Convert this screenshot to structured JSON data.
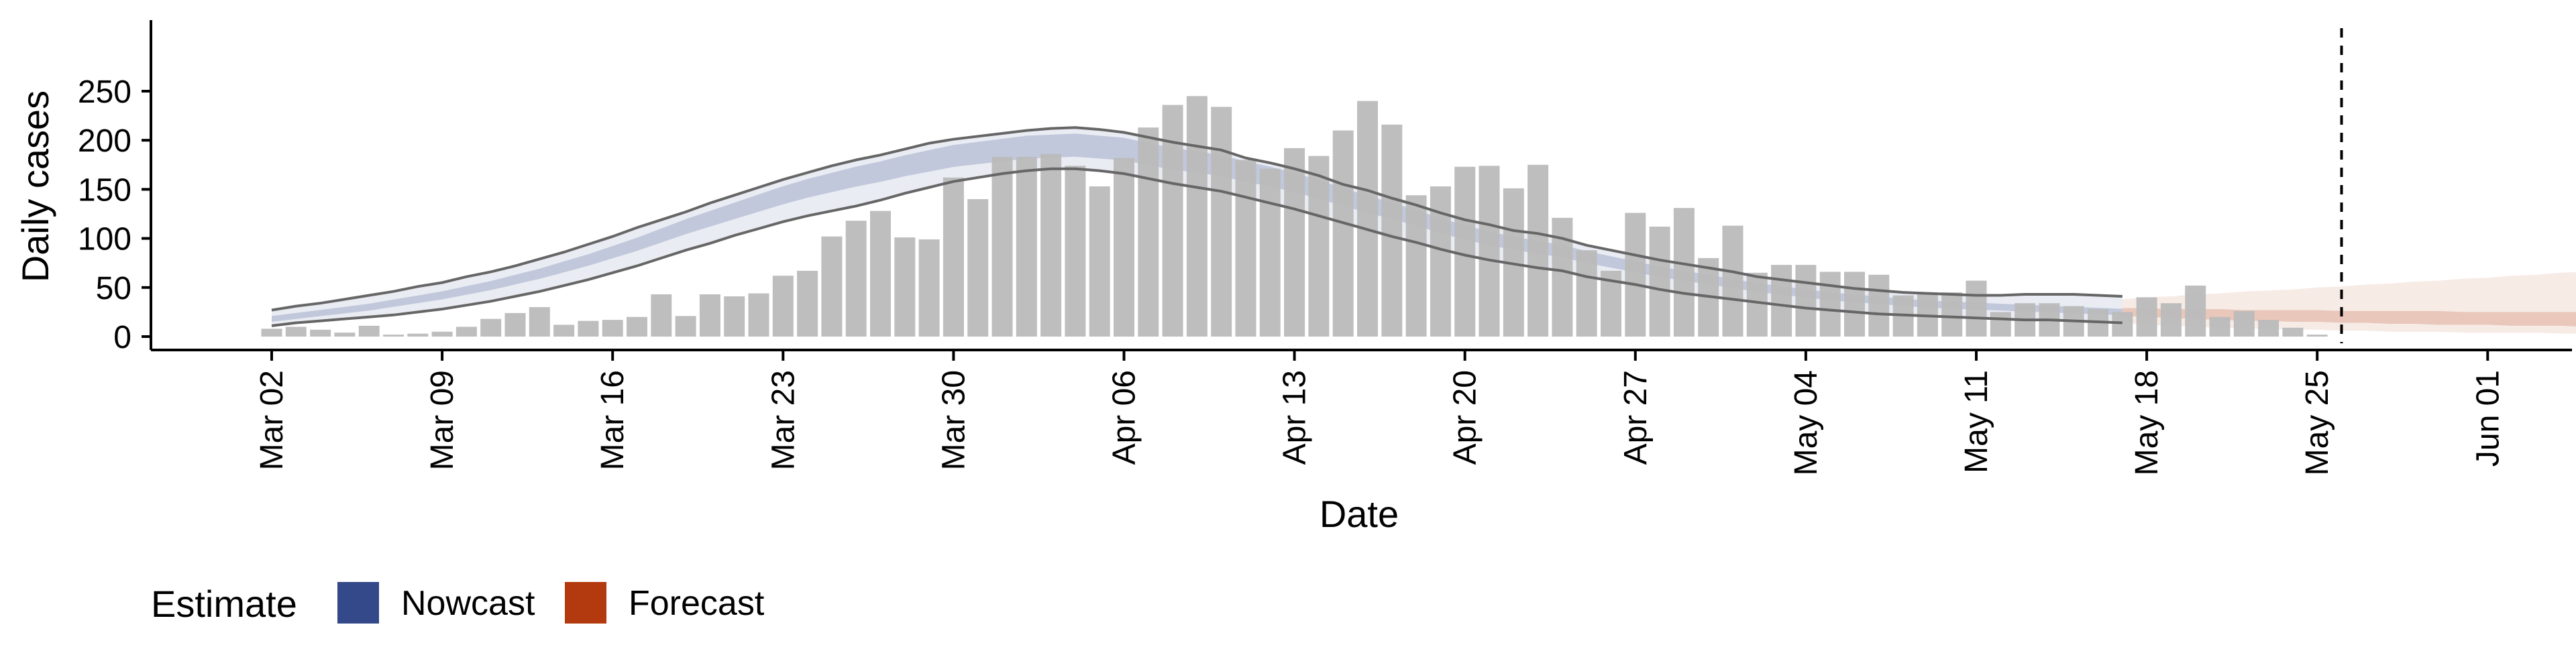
{
  "chart_data": {
    "type": "bar",
    "xlabel": "Date",
    "ylabel": "Daily cases",
    "ylim": [
      0,
      260
    ],
    "yticks": [
      0,
      50,
      100,
      150,
      200,
      250
    ],
    "x_start": "2020-03-02",
    "xticks": [
      "Mar 02",
      "Mar 09",
      "Mar 16",
      "Mar 23",
      "Mar 30",
      "Apr 06",
      "Apr 13",
      "Apr 20",
      "Apr 27",
      "May 04",
      "May 11",
      "May 18",
      "May 25",
      "Jun 01"
    ],
    "dashed_line_date": "2020-05-26",
    "legend": {
      "title": "Estimate",
      "placement": "bottom-left",
      "items": [
        {
          "label": "Nowcast",
          "color": "#34498a"
        },
        {
          "label": "Forecast",
          "color": "#b23a0e"
        }
      ]
    },
    "colors": {
      "bars": "#bbbbbb",
      "nowcast": "#34498a",
      "forecast": "#b23a0e",
      "outline": "#666666"
    },
    "reported_cases": [
      8,
      10,
      7,
      4,
      11,
      2,
      3,
      5,
      10,
      18,
      24,
      30,
      12,
      16,
      17,
      20,
      43,
      21,
      43,
      41,
      44,
      62,
      67,
      102,
      118,
      128,
      101,
      99,
      162,
      140,
      183,
      183,
      186,
      174,
      153,
      182,
      213,
      236,
      245,
      234,
      180,
      171,
      192,
      184,
      210,
      240,
      216,
      144,
      153,
      173,
      174,
      151,
      175,
      121,
      88,
      67,
      126,
      112,
      131,
      80,
      113,
      65,
      73,
      73,
      66,
      66,
      63,
      42,
      43,
      45,
      57,
      25,
      34,
      34,
      31,
      28,
      25,
      40,
      34,
      52,
      20,
      26,
      17,
      9,
      2
    ],
    "nowcast": {
      "start_day": 0,
      "median": [
        18,
        21,
        24,
        27,
        30,
        34,
        38,
        42,
        47,
        52,
        58,
        64,
        71,
        78,
        86,
        94,
        103,
        112,
        120,
        128,
        136,
        144,
        151,
        157,
        163,
        168,
        174,
        179,
        184,
        187,
        190,
        193,
        194,
        195,
        193,
        191,
        186,
        181,
        178,
        174,
        168,
        163,
        157,
        150,
        142,
        135,
        128,
        121,
        113,
        106,
        100,
        95,
        91,
        87,
        81,
        76,
        71,
        66,
        62,
        58,
        54,
        50,
        47,
        44,
        41,
        39,
        37,
        35,
        33,
        32,
        31,
        30,
        29,
        28,
        27,
        26,
        25
      ],
      "outer_upper": [
        28,
        32,
        35,
        39,
        43,
        47,
        52,
        56,
        62,
        67,
        73,
        80,
        87,
        95,
        103,
        112,
        120,
        128,
        137,
        145,
        153,
        161,
        168,
        175,
        181,
        186,
        192,
        198,
        202,
        205,
        208,
        211,
        213,
        214,
        212,
        209,
        204,
        199,
        195,
        191,
        183,
        178,
        172,
        165,
        156,
        150,
        142,
        135,
        127,
        120,
        115,
        109,
        106,
        101,
        94,
        89,
        84,
        79,
        75,
        71,
        67,
        62,
        59,
        56,
        53,
        50,
        48,
        46,
        45,
        44,
        43,
        43,
        44,
        44,
        44,
        43,
        42
      ],
      "outer_lower": [
        10,
        13,
        15,
        17,
        19,
        21,
        24,
        27,
        31,
        35,
        40,
        45,
        51,
        57,
        64,
        71,
        79,
        87,
        94,
        102,
        109,
        116,
        122,
        127,
        132,
        138,
        145,
        151,
        157,
        161,
        165,
        168,
        170,
        170,
        168,
        165,
        160,
        155,
        151,
        147,
        141,
        135,
        129,
        122,
        115,
        108,
        101,
        95,
        88,
        82,
        77,
        73,
        69,
        66,
        60,
        56,
        52,
        47,
        43,
        40,
        37,
        34,
        31,
        28,
        26,
        24,
        22,
        21,
        20,
        19,
        18,
        17,
        16,
        16,
        15,
        14,
        13
      ],
      "line_upper": [
        27,
        31,
        34,
        38,
        42,
        46,
        51,
        55,
        61,
        66,
        72,
        79,
        86,
        94,
        102,
        111,
        119,
        127,
        136,
        144,
        152,
        160,
        167,
        174,
        180,
        185,
        191,
        197,
        201,
        204,
        207,
        210,
        212,
        213,
        211,
        208,
        203,
        198,
        194,
        190,
        182,
        177,
        171,
        164,
        155,
        149,
        141,
        134,
        126,
        119,
        114,
        108,
        105,
        100,
        93,
        88,
        83,
        78,
        74,
        70,
        66,
        61,
        58,
        55,
        52,
        49,
        47,
        45,
        44,
        43,
        42,
        42,
        43,
        43,
        43,
        42,
        41
      ],
      "line_lower": [
        11,
        14,
        16,
        18,
        20,
        22,
        25,
        28,
        32,
        36,
        41,
        46,
        52,
        58,
        65,
        72,
        80,
        88,
        95,
        103,
        110,
        117,
        123,
        128,
        133,
        139,
        146,
        152,
        158,
        162,
        166,
        169,
        171,
        171,
        169,
        166,
        161,
        156,
        152,
        148,
        142,
        136,
        130,
        123,
        116,
        109,
        102,
        96,
        89,
        83,
        78,
        74,
        70,
        67,
        61,
        57,
        53,
        48,
        44,
        41,
        38,
        35,
        32,
        29,
        27,
        25,
        23,
        22,
        21,
        20,
        19,
        18,
        17,
        17,
        16,
        15,
        14
      ]
    },
    "forecast": {
      "start_day": 76,
      "median": [
        25,
        24,
        23,
        23,
        22,
        22,
        21,
        21,
        20,
        20,
        20,
        19,
        19,
        19,
        18,
        18,
        18,
        17,
        17,
        17,
        16,
        16,
        16,
        16
      ],
      "inner_upper": [
        29,
        29,
        28,
        28,
        28,
        27,
        27,
        27,
        27,
        26,
        26,
        26,
        26,
        26,
        25,
        25,
        25,
        25,
        25,
        25,
        25,
        24,
        24,
        24
      ],
      "inner_lower": [
        21,
        20,
        19,
        18,
        17,
        16,
        16,
        15,
        15,
        14,
        14,
        13,
        13,
        12,
        12,
        12,
        11,
        11,
        11,
        10,
        10,
        10,
        10,
        9
      ],
      "outer_upper": [
        38,
        40,
        41,
        43,
        44,
        46,
        47,
        48,
        50,
        51,
        53,
        54,
        56,
        57,
        59,
        60,
        62,
        63,
        65,
        66,
        68,
        69,
        71,
        72
      ],
      "outer_lower": [
        14,
        12,
        11,
        10,
        9,
        8,
        8,
        7,
        7,
        6,
        6,
        5,
        5,
        5,
        4,
        4,
        4,
        4,
        3,
        3,
        3,
        3,
        3,
        3
      ]
    }
  }
}
